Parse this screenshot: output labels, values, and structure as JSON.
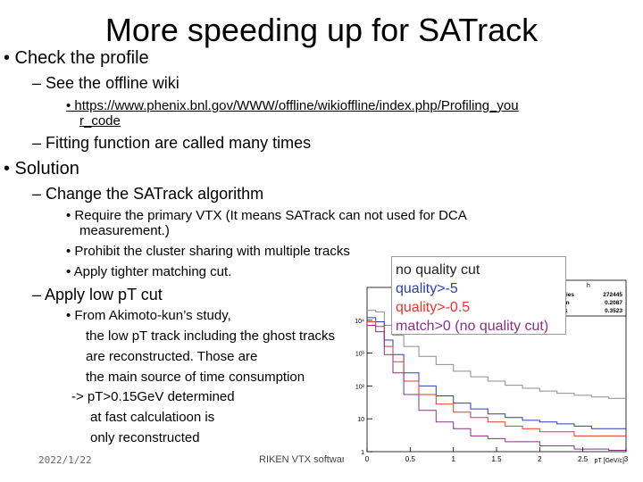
{
  "slide": {
    "title": "More speeding up for SATrack",
    "bullets": {
      "b1": "• Check the profile",
      "b1_1": "– See the offline wiki",
      "b1_1_1_line1": "• https://www.phenix.bnl.gov/WWW/offline/wikioffline/index.php/Profiling_you",
      "b1_1_1_line2": "r_code",
      "b1_2": "– Fitting function are called many times",
      "b2": "• Solution",
      "b2_1": "– Change the SATrack algorithm",
      "b2_1_1_line1": "• Require the primary VTX (It means SATrack can not used for DCA",
      "b2_1_1_line2": "measurement.)",
      "b2_1_2": "• Prohibit the cluster sharing with multiple tracks",
      "b2_1_3": "• Apply tighter matching cut.",
      "b2_2": "– Apply low pT cut",
      "b2_2_1_line1": "• From Akimoto-kun’s study,",
      "b2_2_1_line2": "the  low pT track including the ghost tracks",
      "b2_2_1_line3": "are reconstructed.  Those are",
      "b2_2_1_line4": "the main source of time consumption",
      "b2_2_1_line5": "-> pT>0.15GeV determined",
      "b2_2_1_line6": "at fast calculatioon is",
      "b2_2_1_line7": "only reconstructed"
    },
    "footer": {
      "date": "2022/1/22",
      "center": "RIKEN VTX software meeting"
    }
  },
  "chart_data": {
    "type": "line",
    "title": "",
    "xlabel": "pT [GeV/c]",
    "ylabel": "",
    "xlim": [
      0,
      3
    ],
    "ylog": true,
    "ylim": [
      1,
      100000
    ],
    "x_ticks": [
      "0",
      "0.5",
      "1",
      "1.5",
      "2",
      "2.5",
      "3"
    ],
    "y_ticks": [
      "1",
      "10",
      "10²",
      "10³",
      "10⁴"
    ],
    "stats_box": {
      "name": "h",
      "rows": [
        {
          "label": "Entries",
          "value": "272445"
        },
        {
          "label": "Mean",
          "value": "0.2087"
        },
        {
          "label": "RMS",
          "value": "0.3523"
        }
      ]
    },
    "legend_entries": [
      {
        "name": "no quality cut",
        "color": "#222222"
      },
      {
        "name": "quality>-5",
        "color": "#2a3fb0"
      },
      {
        "name": "quality>-0.5",
        "color": "#e03a2a"
      },
      {
        "name": "match>0 (no quality cut)",
        "color": "#8a2f8a"
      }
    ],
    "x": [
      0.05,
      0.15,
      0.25,
      0.35,
      0.5,
      0.7,
      0.9,
      1.1,
      1.3,
      1.5,
      1.7,
      1.9,
      2.1,
      2.3,
      2.5,
      2.7,
      2.9
    ],
    "series": [
      {
        "name": "no quality cut",
        "color": "#8c8c8c",
        "values": [
          20000,
          18000,
          7000,
          3500,
          1600,
          800,
          450,
          280,
          190,
          140,
          105,
          85,
          70,
          60,
          52,
          46,
          42
        ]
      },
      {
        "name": "quality>-5",
        "color": "#2a3fb0",
        "values": [
          12000,
          9000,
          2500,
          900,
          250,
          100,
          50,
          30,
          20,
          14,
          11,
          9,
          8,
          7,
          6,
          5,
          5
        ]
      },
      {
        "name": "quality>-0.5",
        "color": "#e03a2a",
        "values": [
          9000,
          6500,
          1600,
          550,
          140,
          55,
          28,
          16,
          11,
          8,
          6,
          5,
          4,
          4,
          3,
          3,
          3
        ]
      },
      {
        "name": "match>0 (no quality cut)",
        "color": "#8a2f8a",
        "values": [
          7000,
          4500,
          900,
          250,
          55,
          18,
          8,
          5,
          3,
          2.5,
          2,
          2,
          1.5,
          1.5,
          1.2,
          1.2,
          1.1
        ]
      }
    ]
  }
}
